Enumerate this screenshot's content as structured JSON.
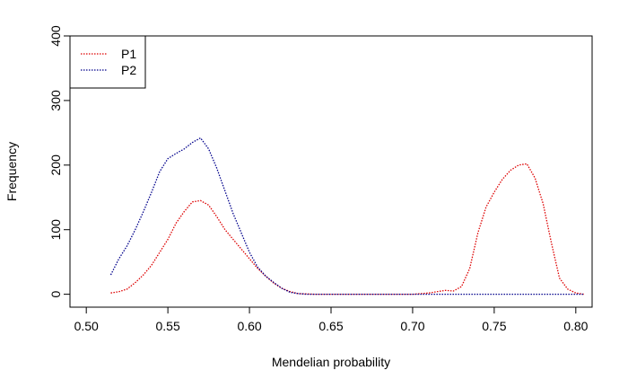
{
  "chart_data": {
    "type": "line",
    "title": "",
    "xlabel": "Mendelian probability",
    "ylabel": "Frequency",
    "xlim": [
      0.49,
      0.81
    ],
    "ylim": [
      -20,
      400
    ],
    "xticks": [
      0.5,
      0.55,
      0.6,
      0.65,
      0.7,
      0.75,
      0.8
    ],
    "xtick_labels": [
      "0.50",
      "0.55",
      "0.60",
      "0.65",
      "0.70",
      "0.75",
      "0.80"
    ],
    "yticks": [
      0,
      100,
      200,
      300,
      400
    ],
    "ytick_labels": [
      "0",
      "100",
      "200",
      "300",
      "400"
    ],
    "grid": false,
    "legend": {
      "position": "top-left"
    },
    "series": [
      {
        "name": "P1",
        "color": "#dd0000",
        "line_style": "dotted",
        "x": [
          0.515,
          0.52,
          0.525,
          0.53,
          0.535,
          0.54,
          0.545,
          0.55,
          0.555,
          0.56,
          0.565,
          0.57,
          0.575,
          0.58,
          0.585,
          0.59,
          0.595,
          0.6,
          0.605,
          0.61,
          0.615,
          0.62,
          0.625,
          0.63,
          0.64,
          0.65,
          0.66,
          0.67,
          0.68,
          0.69,
          0.7,
          0.705,
          0.71,
          0.715,
          0.72,
          0.725,
          0.73,
          0.735,
          0.74,
          0.745,
          0.75,
          0.755,
          0.76,
          0.765,
          0.77,
          0.775,
          0.78,
          0.785,
          0.79,
          0.795,
          0.8,
          0.805
        ],
        "y": [
          2,
          4,
          8,
          18,
          30,
          45,
          65,
          85,
          110,
          128,
          143,
          145,
          138,
          120,
          100,
          85,
          70,
          55,
          40,
          28,
          17,
          9,
          4,
          1,
          0,
          0,
          0,
          0,
          0,
          0,
          0,
          1,
          2,
          4,
          6,
          5,
          12,
          40,
          95,
          135,
          158,
          178,
          192,
          200,
          202,
          180,
          140,
          80,
          25,
          8,
          2,
          0
        ]
      },
      {
        "name": "P2",
        "color": "#00008b",
        "line_style": "dotted",
        "x": [
          0.515,
          0.52,
          0.525,
          0.53,
          0.535,
          0.54,
          0.545,
          0.55,
          0.555,
          0.56,
          0.565,
          0.57,
          0.575,
          0.58,
          0.585,
          0.59,
          0.595,
          0.6,
          0.605,
          0.61,
          0.615,
          0.62,
          0.625,
          0.63,
          0.635,
          0.64,
          0.65,
          0.66,
          0.67,
          0.68,
          0.69,
          0.7,
          0.71,
          0.72,
          0.73,
          0.74,
          0.75,
          0.76,
          0.77,
          0.78,
          0.79,
          0.8,
          0.805
        ],
        "y": [
          30,
          55,
          75,
          100,
          128,
          158,
          190,
          210,
          218,
          225,
          235,
          242,
          225,
          195,
          160,
          125,
          95,
          65,
          42,
          28,
          18,
          9,
          3,
          1,
          0,
          0,
          0,
          0,
          0,
          0,
          0,
          0,
          0,
          0,
          0,
          0,
          0,
          0,
          0,
          0,
          0,
          0,
          0
        ]
      }
    ]
  }
}
